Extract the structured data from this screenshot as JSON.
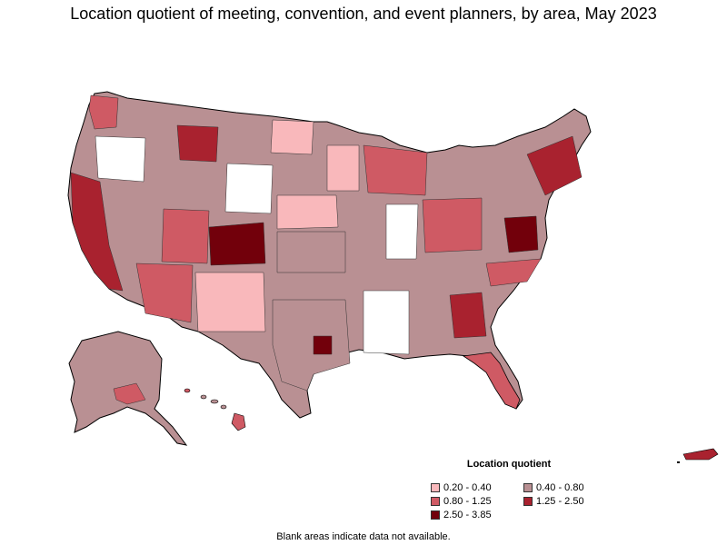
{
  "title": "Location quotient of meeting, convention, and event planners, by area, May 2023",
  "legend": {
    "title": "Location quotient",
    "items": [
      {
        "label": "0.20 - 0.40",
        "color": "#f9b8bb"
      },
      {
        "label": "0.40 - 0.80",
        "color": "#b99093"
      },
      {
        "label": "0.80 - 1.25",
        "color": "#cf5a64"
      },
      {
        "label": "1.25 - 2.50",
        "color": "#a9222f"
      },
      {
        "label": "2.50 - 3.85",
        "color": "#72000b"
      }
    ]
  },
  "note": "Blank areas indicate data not available.",
  "colors": {
    "no_data": "#ffffff",
    "border": "#333333",
    "state_border": "#000000"
  }
}
